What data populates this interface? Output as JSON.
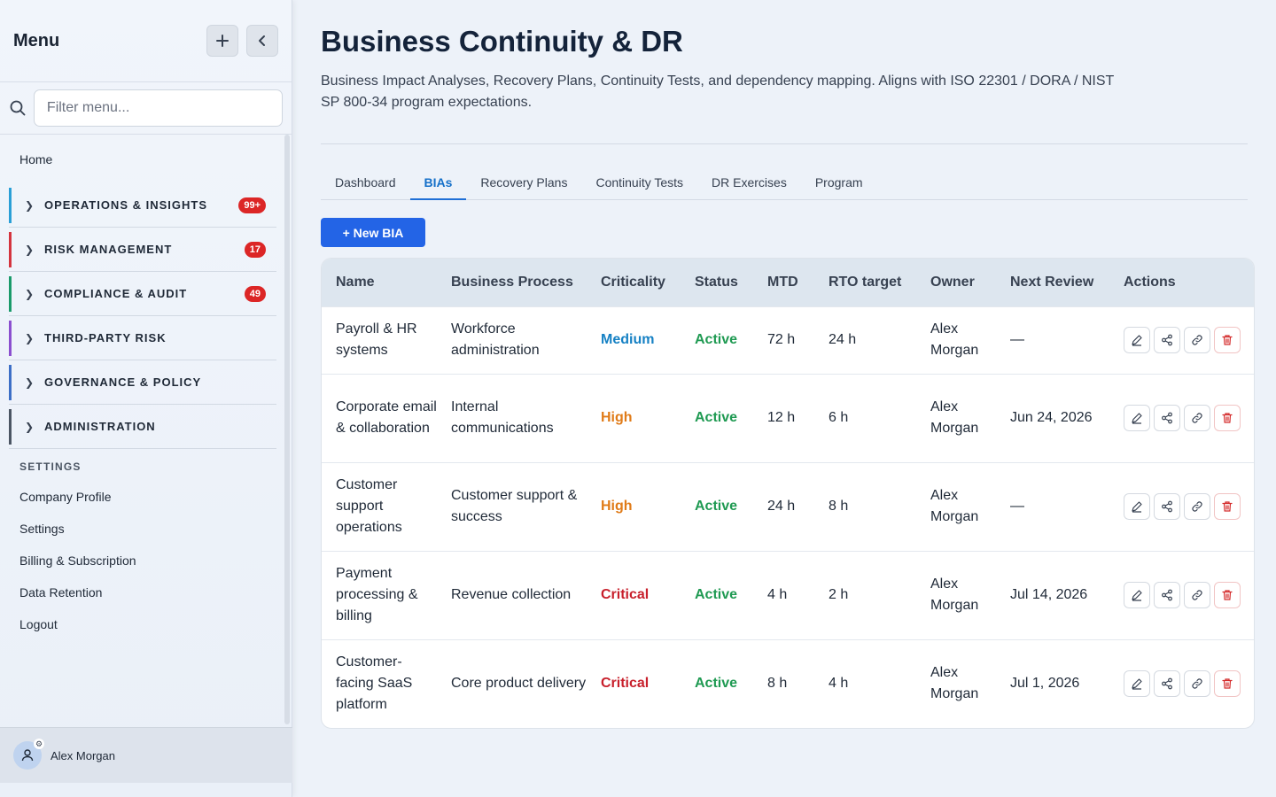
{
  "sidebar": {
    "title": "Menu",
    "search_placeholder": "Filter menu...",
    "home": "Home",
    "groups": [
      {
        "label": "OPERATIONS & INSIGHTS",
        "badge": "99+",
        "color": "#2a9fd6"
      },
      {
        "label": "RISK MANAGEMENT",
        "badge": "17",
        "color": "#d4343e"
      },
      {
        "label": "COMPLIANCE & AUDIT",
        "badge": "49",
        "color": "#1a9a6a"
      },
      {
        "label": "THIRD-PARTY RISK",
        "badge": "",
        "color": "#8b4fcf"
      },
      {
        "label": "GOVERNANCE & POLICY",
        "badge": "",
        "color": "#3d6fc7"
      },
      {
        "label": "ADMINISTRATION",
        "badge": "",
        "color": "#4b5563"
      }
    ],
    "settings_header": "SETTINGS",
    "settings_items": [
      "Company Profile",
      "Settings",
      "Billing & Subscription",
      "Data Retention",
      "Logout"
    ],
    "user_name": "Alex Morgan"
  },
  "page": {
    "title": "Business Continuity & DR",
    "description": "Business Impact Analyses, Recovery Plans, Continuity Tests, and dependency mapping. Aligns with ISO 22301 / DORA / NIST SP 800-34 program expectations.",
    "tabs": [
      "Dashboard",
      "BIAs",
      "Recovery Plans",
      "Continuity Tests",
      "DR Exercises",
      "Program"
    ],
    "active_tab": "BIAs",
    "new_button": "+ New BIA"
  },
  "table": {
    "columns": [
      "Name",
      "Business Process",
      "Criticality",
      "Status",
      "MTD",
      "RTO target",
      "Owner",
      "Next Review",
      "Actions"
    ],
    "rows": [
      {
        "name": "Payroll & HR systems",
        "process": "Workforce administration",
        "criticality": "Medium",
        "status": "Active",
        "mtd": "72 h",
        "rto": "24 h",
        "owner": "Alex Morgan",
        "next_review": "—"
      },
      {
        "name": "Corporate email & collaboration",
        "process": "Internal communications",
        "criticality": "High",
        "status": "Active",
        "mtd": "12 h",
        "rto": "6 h",
        "owner": "Alex Morgan",
        "next_review": "Jun 24, 2026"
      },
      {
        "name": "Customer support operations",
        "process": "Customer support & success",
        "criticality": "High",
        "status": "Active",
        "mtd": "24 h",
        "rto": "8 h",
        "owner": "Alex Morgan",
        "next_review": "—"
      },
      {
        "name": "Payment processing & billing",
        "process": "Revenue collection",
        "criticality": "Critical",
        "status": "Active",
        "mtd": "4 h",
        "rto": "2 h",
        "owner": "Alex Morgan",
        "next_review": "Jul 14, 2026"
      },
      {
        "name": "Customer-facing SaaS platform",
        "process": "Core product delivery",
        "criticality": "Critical",
        "status": "Active",
        "mtd": "8 h",
        "rto": "4 h",
        "owner": "Alex Morgan",
        "next_review": "Jul 1, 2026"
      }
    ],
    "action_icons": [
      "edit-icon",
      "share-icon",
      "link-icon",
      "trash-icon"
    ]
  }
}
